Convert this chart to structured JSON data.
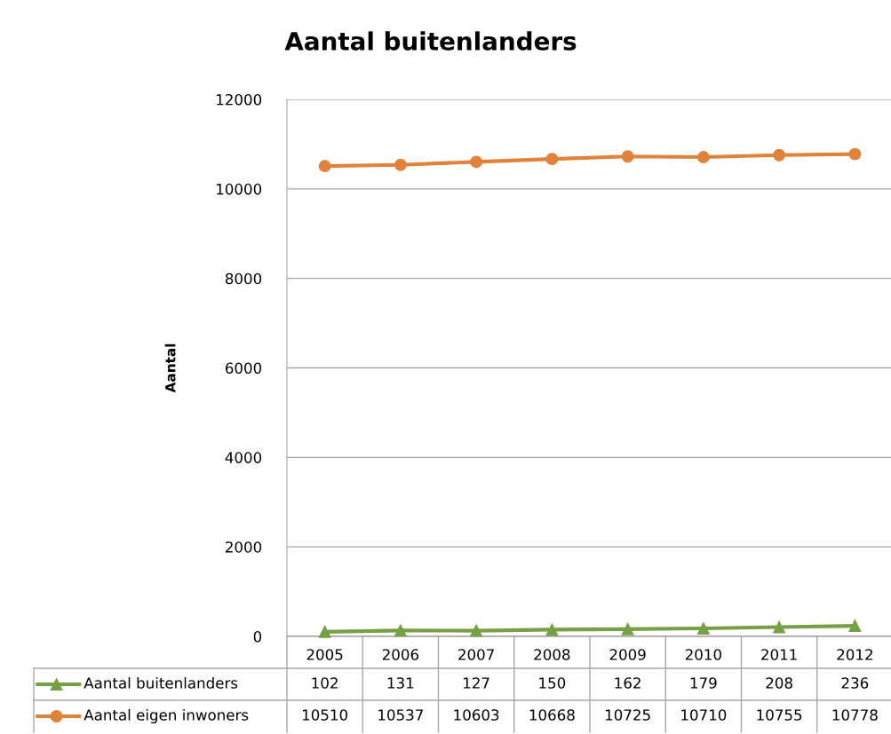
{
  "chart_data": {
    "type": "line",
    "title": "Aantal buitenlanders",
    "ylabel": "Aantal",
    "categories": [
      "2005",
      "2006",
      "2007",
      "2008",
      "2009",
      "2010",
      "2011",
      "2012"
    ],
    "ylim": [
      0,
      12000
    ],
    "yticks": [
      0,
      2000,
      4000,
      6000,
      8000,
      10000,
      12000
    ],
    "grid": "y",
    "legend": "bottom",
    "data_labels": true,
    "series": [
      {
        "name": "Aantal buitenlanders",
        "color": "#77a045",
        "marker": "triangle",
        "values": [
          102,
          131,
          127,
          150,
          162,
          179,
          208,
          236
        ]
      },
      {
        "name": "Aantal eigen inwoners",
        "color": "#e0823a",
        "marker": "circle",
        "values": [
          10510,
          10537,
          10603,
          10668,
          10725,
          10710,
          10755,
          10778
        ]
      }
    ]
  }
}
